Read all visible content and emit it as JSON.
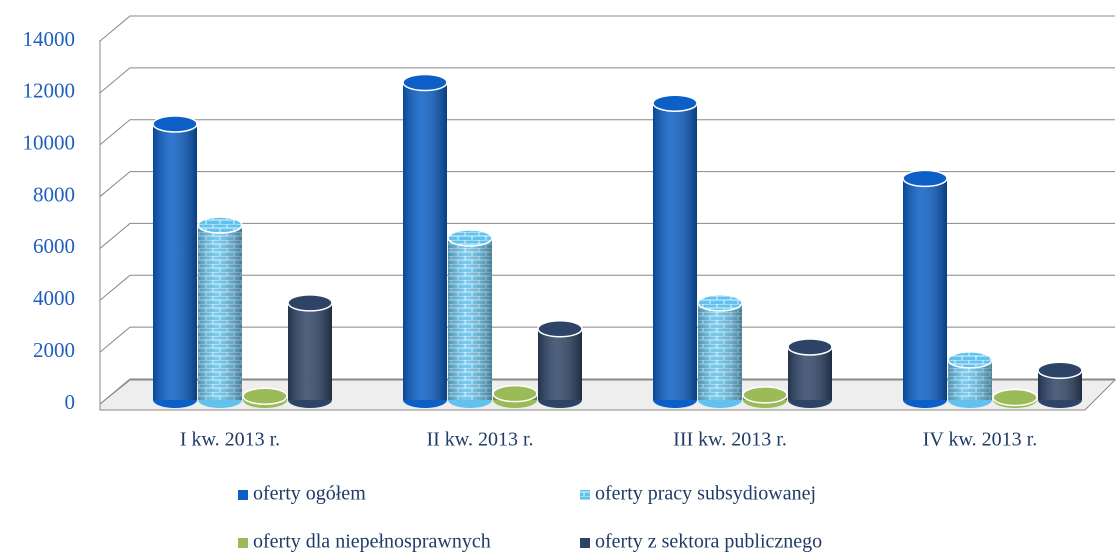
{
  "chart_data": {
    "type": "bar3d",
    "categories": [
      "I kw. 2013 r.",
      "II kw. 2013 r.",
      "III kw. 2013 r.",
      "IV kw. 2013 r."
    ],
    "series": [
      {
        "name": "oferty ogółem",
        "color": "#0b5fc6",
        "values": [
          10800,
          12400,
          11600,
          8700
        ]
      },
      {
        "name": "oferty pracy subsydiowanej",
        "color": "#62c2ee",
        "values": [
          6900,
          6400,
          3900,
          1700
        ]
      },
      {
        "name": "oferty dla niepełnosprawnych",
        "color": "#9bbb59",
        "values": [
          300,
          400,
          350,
          250
        ]
      },
      {
        "name": "oferty z sektora publicznego",
        "color": "#2e4466",
        "values": [
          3900,
          2900,
          2200,
          1300
        ]
      }
    ],
    "ylim": [
      0,
      14000
    ],
    "yticks": [
      0,
      2000,
      4000,
      6000,
      8000,
      10000,
      12000,
      14000
    ],
    "grid": true
  }
}
